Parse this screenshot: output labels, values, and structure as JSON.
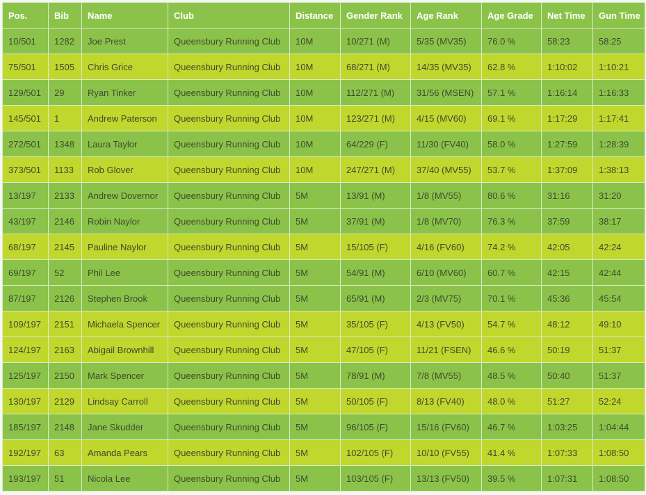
{
  "headers": [
    "Pos.",
    "Bib",
    "Name",
    "Club",
    "Distance",
    "Gender Rank",
    "Age Rank",
    "Age Grade",
    "Net Time",
    "Gun Time"
  ],
  "row_colors": {
    "green": "#8bc34a",
    "lime": "#c0d72d"
  },
  "rows": [
    {
      "tone": "green",
      "cells": [
        "10/501",
        "1282",
        "Joe Prest",
        "Queensbury Running Club",
        "10M",
        "10/271 (M)",
        "5/35 (MV35)",
        "76.0 %",
        "58:23",
        "58:25"
      ]
    },
    {
      "tone": "lime",
      "cells": [
        "75/501",
        "1505",
        "Chris Grice",
        "Queensbury Running Club",
        "10M",
        "68/271 (M)",
        "14/35 (MV35)",
        "62.8 %",
        "1:10:02",
        "1:10:21"
      ]
    },
    {
      "tone": "green",
      "cells": [
        "129/501",
        "29",
        "Ryan Tinker",
        "Queensbury Running Club",
        "10M",
        "112/271 (M)",
        "31/56 (MSEN)",
        "57.1 %",
        "1:16:14",
        "1:16:33"
      ]
    },
    {
      "tone": "lime",
      "cells": [
        "145/501",
        "1",
        "Andrew Paterson",
        "Queensbury Running Club",
        "10M",
        "123/271 (M)",
        "4/15 (MV60)",
        "69.1 %",
        "1:17:29",
        "1:17:41"
      ]
    },
    {
      "tone": "green",
      "cells": [
        "272/501",
        "1348",
        "Laura Taylor",
        "Queensbury Running Club",
        "10M",
        "64/229 (F)",
        "11/30 (FV40)",
        "58.0 %",
        "1:27:59",
        "1:28:39"
      ]
    },
    {
      "tone": "lime",
      "cells": [
        "373/501",
        "1133",
        "Rob Glover",
        "Queensbury Running Club",
        "10M",
        "247/271 (M)",
        "37/40 (MV55)",
        "53.7 %",
        "1:37:09",
        "1:38:13"
      ]
    },
    {
      "tone": "green",
      "cells": [
        "13/197",
        "2133",
        "Andrew Dovernor",
        "Queensbury Running Club",
        "5M",
        "13/91 (M)",
        "1/8 (MV55)",
        "80.6 %",
        "31:16",
        "31:20"
      ]
    },
    {
      "tone": "green",
      "cells": [
        "43/197",
        "2146",
        "Robin Naylor",
        "Queensbury Running Club",
        "5M",
        "37/91 (M)",
        "1/8 (MV70)",
        "76.3 %",
        "37:59",
        "38:17"
      ]
    },
    {
      "tone": "lime",
      "cells": [
        "68/197",
        "2145",
        "Pauline Naylor",
        "Queensbury Running Club",
        "5M",
        "15/105 (F)",
        "4/16 (FV60)",
        "74.2 %",
        "42:05",
        "42:24"
      ]
    },
    {
      "tone": "green",
      "cells": [
        "69/197",
        "52",
        "Phil Lee",
        "Queensbury Running Club",
        "5M",
        "54/91 (M)",
        "6/10 (MV60)",
        "60.7 %",
        "42:15",
        "42:44"
      ]
    },
    {
      "tone": "green",
      "cells": [
        "87/197",
        "2126",
        "Stephen Brook",
        "Queensbury Running Club",
        "5M",
        "65/91 (M)",
        "2/3 (MV75)",
        "70.1 %",
        "45:36",
        "45:54"
      ]
    },
    {
      "tone": "lime",
      "cells": [
        "109/197",
        "2151",
        "Michaela Spencer",
        "Queensbury Running Club",
        "5M",
        "35/105 (F)",
        "4/13 (FV50)",
        "54.7 %",
        "48:12",
        "49:10"
      ]
    },
    {
      "tone": "lime",
      "cells": [
        "124/197",
        "2163",
        "Abigail Brownhill",
        "Queensbury Running Club",
        "5M",
        "47/105 (F)",
        "11/21 (FSEN)",
        "46.6 %",
        "50:19",
        "51:37"
      ]
    },
    {
      "tone": "green",
      "cells": [
        "125/197",
        "2150",
        "Mark Spencer",
        "Queensbury Running Club",
        "5M",
        "78/91 (M)",
        "7/8 (MV55)",
        "48.5 %",
        "50:40",
        "51:37"
      ]
    },
    {
      "tone": "lime",
      "cells": [
        "130/197",
        "2129",
        "Lindsay Carroll",
        "Queensbury Running Club",
        "5M",
        "50/105 (F)",
        "8/13 (FV40)",
        "48.0 %",
        "51:27",
        "52:24"
      ]
    },
    {
      "tone": "green",
      "cells": [
        "185/197",
        "2148",
        "Jane Skudder",
        "Queensbury Running Club",
        "5M",
        "96/105 (F)",
        "15/16 (FV60)",
        "46.7 %",
        "1:03:25",
        "1:04:44"
      ]
    },
    {
      "tone": "lime",
      "cells": [
        "192/197",
        "63",
        "Amanda Pears",
        "Queensbury Running Club",
        "5M",
        "102/105 (F)",
        "10/10 (FV55)",
        "41.4 %",
        "1:07:33",
        "1:08:50"
      ]
    },
    {
      "tone": "green",
      "cells": [
        "193/197",
        "51",
        "Nicola Lee",
        "Queensbury Running Club",
        "5M",
        "103/105 (F)",
        "13/13 (FV50)",
        "39.5 %",
        "1:07:31",
        "1:08:50"
      ]
    }
  ]
}
